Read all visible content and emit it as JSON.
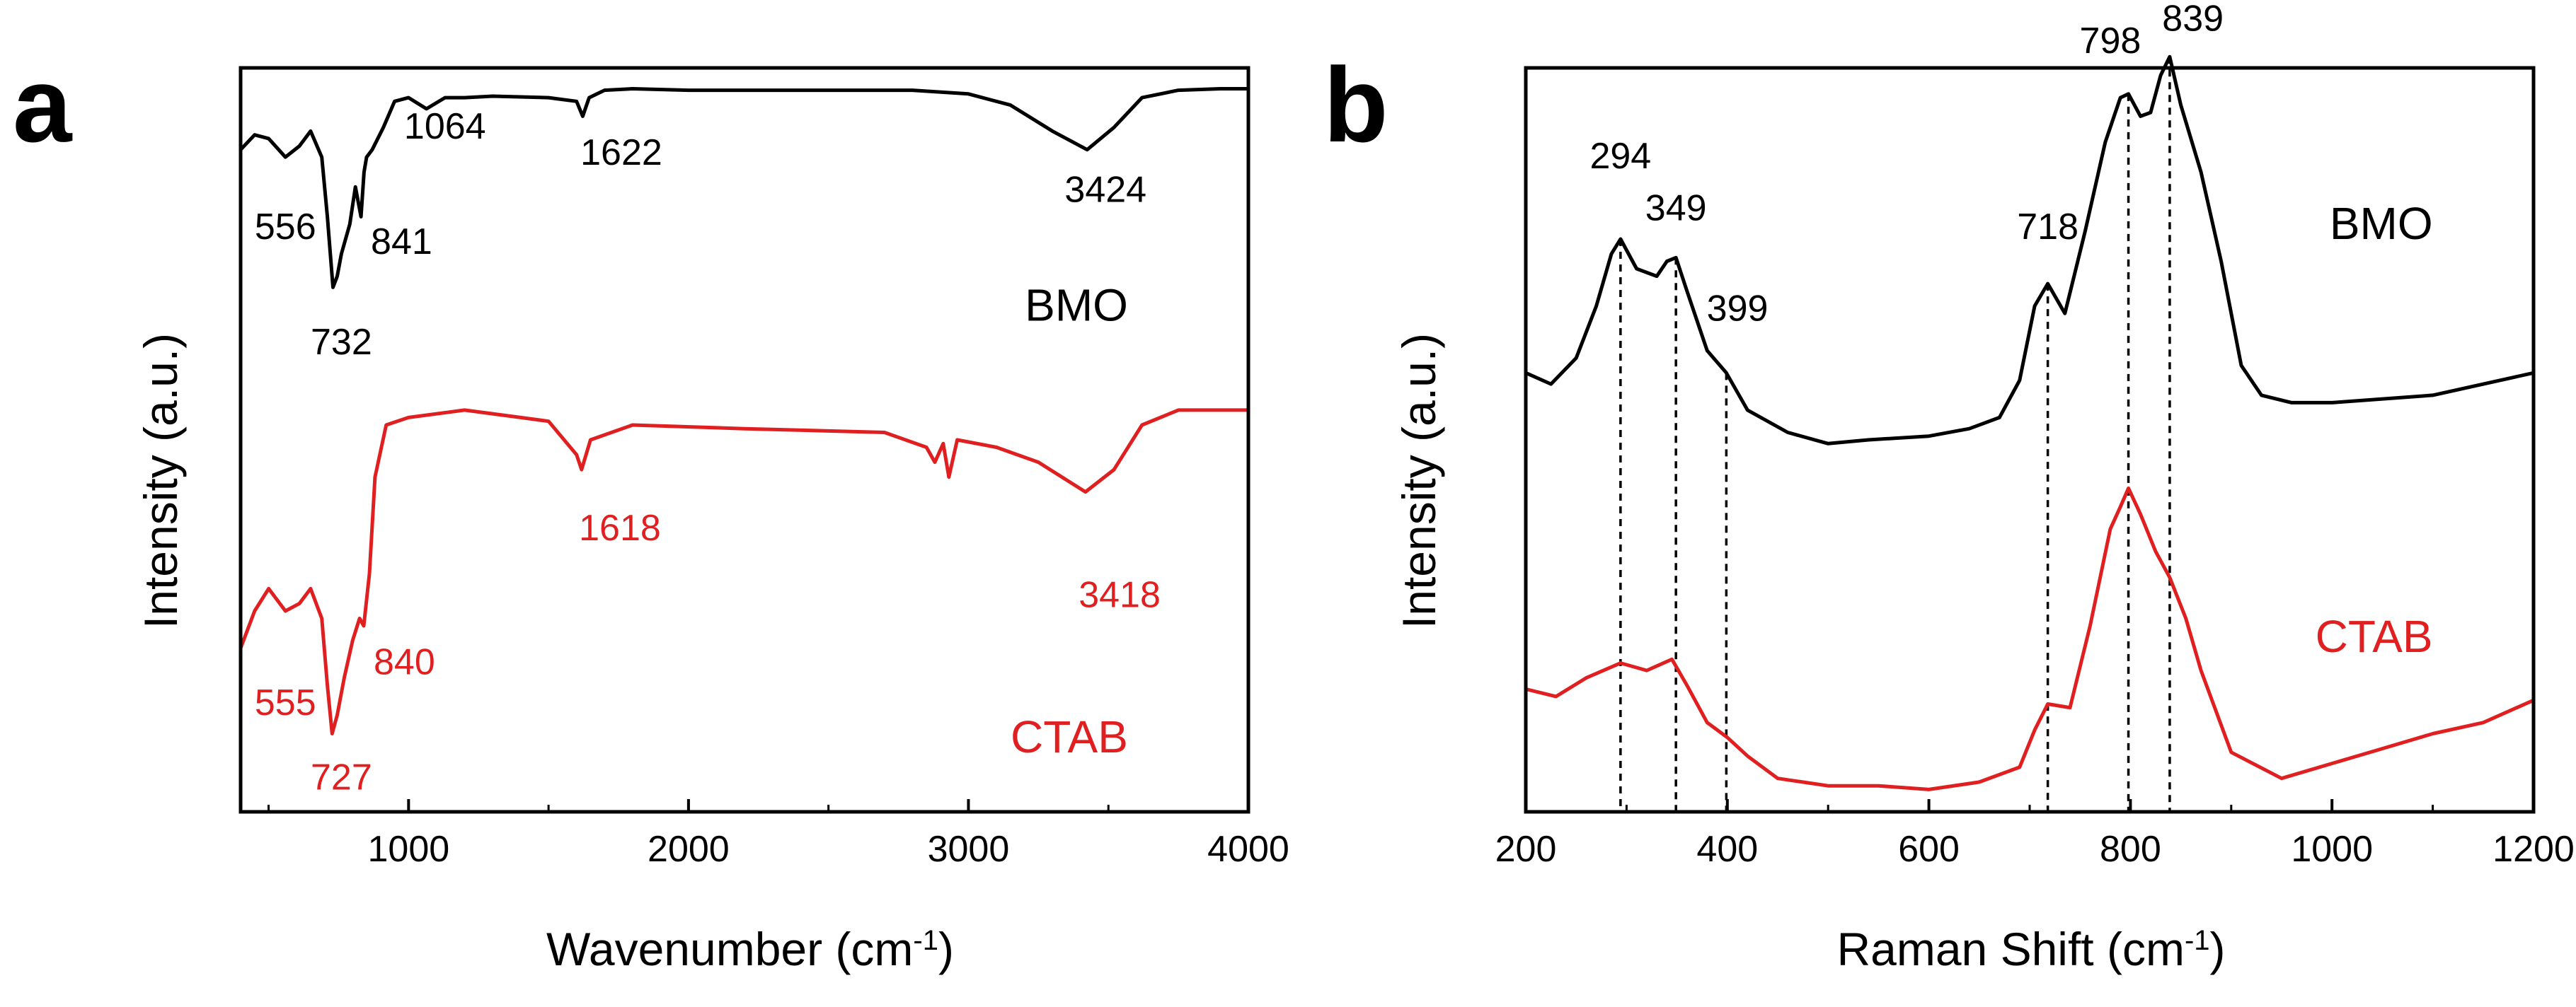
{
  "colors": {
    "bmo": "#000000",
    "ctab": "#e02020",
    "axis": "#000000"
  },
  "chart_data": [
    {
      "type": "line",
      "panel_label": "a",
      "xlabel": "Wavenumber (cm",
      "xlabel_sup": "-1",
      "xlabel_close": ")",
      "ylabel": "Intensity (a.u.)",
      "xlim": [
        400,
        4000
      ],
      "ylim": [
        0,
        10
      ],
      "xticks": [
        1000,
        2000,
        3000,
        4000
      ],
      "xtick_labels": [
        "1000",
        "2000",
        "3000",
        "4000"
      ],
      "y_ticks_shown": false,
      "series": [
        {
          "name": "BMO",
          "color": "#000000",
          "x": [
            400,
            450,
            500,
            560,
            610,
            650,
            690,
            710,
            730,
            745,
            760,
            790,
            810,
            830,
            841,
            850,
            870,
            910,
            950,
            1000,
            1064,
            1130,
            1200,
            1300,
            1500,
            1600,
            1622,
            1645,
            1700,
            1800,
            2000,
            2400,
            2800,
            3000,
            3150,
            3300,
            3424,
            3520,
            3620,
            3750,
            3900,
            4000
          ],
          "y": [
            8.9,
            9.1,
            9.05,
            8.8,
            8.95,
            9.15,
            8.8,
            8.0,
            7.05,
            7.2,
            7.5,
            7.9,
            8.4,
            8.0,
            8.6,
            8.8,
            8.9,
            9.2,
            9.55,
            9.6,
            9.45,
            9.6,
            9.6,
            9.62,
            9.6,
            9.55,
            9.35,
            9.6,
            9.7,
            9.72,
            9.7,
            9.7,
            9.7,
            9.65,
            9.5,
            9.15,
            8.9,
            9.2,
            9.6,
            9.7,
            9.72,
            9.72
          ]
        },
        {
          "name": "CTAB",
          "color": "#e02020",
          "x": [
            400,
            450,
            500,
            560,
            610,
            650,
            690,
            710,
            727,
            745,
            770,
            800,
            825,
            840,
            860,
            880,
            920,
            1000,
            1200,
            1400,
            1500,
            1600,
            1618,
            1650,
            1800,
            2200,
            2700,
            2850,
            2880,
            2910,
            2930,
            2960,
            3100,
            3250,
            3418,
            3520,
            3620,
            3750,
            4000
          ],
          "y": [
            2.2,
            2.7,
            3.0,
            2.7,
            2.8,
            3.0,
            2.6,
            1.7,
            1.05,
            1.3,
            1.8,
            2.3,
            2.6,
            2.5,
            3.2,
            4.5,
            5.2,
            5.3,
            5.4,
            5.3,
            5.25,
            4.8,
            4.6,
            5.0,
            5.2,
            5.15,
            5.1,
            4.9,
            4.7,
            4.95,
            4.5,
            5.0,
            4.9,
            4.7,
            4.3,
            4.6,
            5.2,
            5.4,
            5.4
          ]
        }
      ],
      "annotations": [
        {
          "text": "556",
          "x": 560,
          "y": 7.7,
          "series": "BMO"
        },
        {
          "text": "732",
          "x": 760,
          "y": 6.15,
          "series": "BMO"
        },
        {
          "text": "841",
          "x": 975,
          "y": 7.5,
          "series": "BMO"
        },
        {
          "text": "1064",
          "x": 1130,
          "y": 9.05,
          "series": "BMO"
        },
        {
          "text": "1622",
          "x": 1760,
          "y": 8.7,
          "series": "BMO"
        },
        {
          "text": "3424",
          "x": 3490,
          "y": 8.2,
          "series": "BMO"
        },
        {
          "text": "555",
          "x": 560,
          "y": 1.3,
          "series": "CTAB"
        },
        {
          "text": "727",
          "x": 760,
          "y": 0.3,
          "series": "CTAB"
        },
        {
          "text": "840",
          "x": 985,
          "y": 1.85,
          "series": "CTAB"
        },
        {
          "text": "1618",
          "x": 1755,
          "y": 3.65,
          "series": "CTAB"
        },
        {
          "text": "3418",
          "x": 3540,
          "y": 2.75,
          "series": "CTAB"
        }
      ],
      "series_labels": [
        {
          "text": "BMO",
          "x": 3570,
          "y": 6.6
        },
        {
          "text": "CTAB",
          "x": 3570,
          "y": 0.8
        }
      ]
    },
    {
      "type": "line",
      "panel_label": "b",
      "xlabel": "Raman Shift (cm",
      "xlabel_sup": "-1",
      "xlabel_close": ")",
      "ylabel": "Intensity (a.u.)",
      "xlim": [
        200,
        1200
      ],
      "ylim": [
        0,
        10
      ],
      "xticks": [
        200,
        400,
        600,
        800,
        1000,
        1200
      ],
      "xtick_labels": [
        "200",
        "400",
        "600",
        "800",
        "1000",
        "1200"
      ],
      "y_ticks_shown": false,
      "series": [
        {
          "name": "BMO",
          "color": "#000000",
          "x": [
            200,
            225,
            250,
            270,
            285,
            294,
            310,
            330,
            340,
            349,
            360,
            380,
            399,
            420,
            460,
            500,
            540,
            600,
            640,
            670,
            690,
            705,
            718,
            735,
            755,
            775,
            790,
            798,
            810,
            820,
            830,
            839,
            850,
            870,
            890,
            910,
            930,
            960,
            1000,
            1100,
            1200
          ],
          "y": [
            5.9,
            5.75,
            6.1,
            6.8,
            7.5,
            7.7,
            7.3,
            7.2,
            7.4,
            7.45,
            7.0,
            6.2,
            5.9,
            5.4,
            5.1,
            4.95,
            5.0,
            5.05,
            5.15,
            5.3,
            5.8,
            6.8,
            7.1,
            6.7,
            7.8,
            9.0,
            9.6,
            9.65,
            9.35,
            9.4,
            9.9,
            10.15,
            9.5,
            8.6,
            7.4,
            6.0,
            5.6,
            5.5,
            5.5,
            5.6,
            5.9
          ]
        },
        {
          "name": "CTAB",
          "color": "#e02020",
          "x": [
            200,
            230,
            260,
            294,
            320,
            345,
            360,
            380,
            400,
            420,
            450,
            500,
            550,
            600,
            650,
            690,
            705,
            718,
            740,
            760,
            780,
            790,
            798,
            810,
            825,
            839,
            855,
            870,
            900,
            950,
            1000,
            1050,
            1100,
            1150,
            1200
          ],
          "y": [
            1.65,
            1.55,
            1.8,
            2.0,
            1.9,
            2.05,
            1.7,
            1.2,
            1.0,
            0.75,
            0.45,
            0.35,
            0.35,
            0.3,
            0.4,
            0.6,
            1.1,
            1.45,
            1.4,
            2.5,
            3.8,
            4.1,
            4.35,
            4.0,
            3.5,
            3.15,
            2.6,
            1.9,
            0.8,
            0.45,
            0.65,
            0.85,
            1.05,
            1.2,
            1.5
          ]
        }
      ],
      "annotations": [
        {
          "text": "294",
          "x": 294,
          "y": 8.65,
          "series": "BMO"
        },
        {
          "text": "349",
          "x": 349,
          "y": 7.95,
          "series": "BMO"
        },
        {
          "text": "399",
          "x": 410,
          "y": 6.6,
          "series": "BMO"
        },
        {
          "text": "718",
          "x": 718,
          "y": 7.7,
          "series": "BMO"
        },
        {
          "text": "798",
          "x": 780,
          "y": 10.2,
          "series": "BMO"
        },
        {
          "text": "839",
          "x": 862,
          "y": 10.5,
          "series": "BMO"
        }
      ],
      "dashed_lines": [
        294,
        349,
        399,
        718,
        798,
        839
      ],
      "series_labels": [
        {
          "text": "BMO",
          "x": 1100,
          "y": 7.7
        },
        {
          "text": "CTAB",
          "x": 1100,
          "y": 2.15
        }
      ]
    }
  ]
}
